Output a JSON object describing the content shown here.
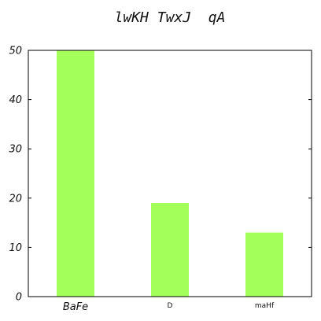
{
  "chart_data": {
    "type": "bar",
    "title": "lwKH TwxJ  qA",
    "categories": [
      "BaFe",
      "D",
      "maHf"
    ],
    "values": [
      50,
      19,
      13
    ],
    "ylim": [
      0,
      50
    ],
    "yticks": [
      0,
      10,
      20,
      30,
      40,
      50
    ],
    "bar_color": "#a3ff5a",
    "grid": false,
    "legend": "none"
  }
}
